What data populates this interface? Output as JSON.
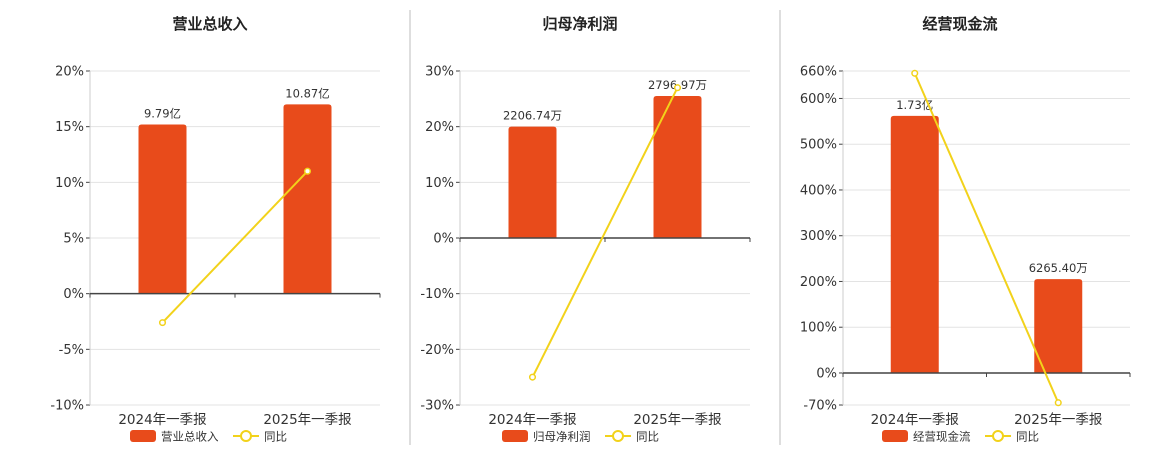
{
  "colors": {
    "bar": "#E84B1B",
    "line": "#F2D21B",
    "axis": "#444444",
    "grid": "#E3E3E3",
    "divider": "#BDBDBD"
  },
  "chart_data": [
    {
      "type": "bar",
      "title": "营业总收入",
      "categories": [
        "2024年一季报",
        "2025年一季报"
      ],
      "series": [
        {
          "name": "营业总收入",
          "type": "bar",
          "values": [
            15.2,
            17.0
          ],
          "labels": [
            "9.79亿",
            "10.87亿"
          ]
        },
        {
          "name": "同比",
          "type": "line",
          "values": [
            -2.6,
            11.0
          ]
        }
      ],
      "ylim": [
        -10,
        20
      ],
      "yticks": [
        -10,
        -5,
        0,
        5,
        10,
        15,
        20
      ],
      "ytick_labels": [
        "-10%",
        "-5%",
        "0%",
        "5%",
        "10%",
        "15%",
        "20%"
      ],
      "grid": true,
      "legend": "bottom"
    },
    {
      "type": "bar",
      "title": "归母净利润",
      "categories": [
        "2024年一季报",
        "2025年一季报"
      ],
      "series": [
        {
          "name": "归母净利润",
          "type": "bar",
          "values": [
            20.0,
            25.5
          ],
          "labels": [
            "2206.74万",
            "2796.97万"
          ]
        },
        {
          "name": "同比",
          "type": "line",
          "values": [
            -25.0,
            27.0
          ]
        }
      ],
      "ylim": [
        -30,
        30
      ],
      "yticks": [
        -30,
        -20,
        -10,
        0,
        10,
        20,
        30
      ],
      "ytick_labels": [
        "-30%",
        "-20%",
        "-10%",
        "0%",
        "10%",
        "20%",
        "30%"
      ],
      "grid": true,
      "legend": "bottom"
    },
    {
      "type": "bar",
      "title": "经营现金流",
      "categories": [
        "2024年一季报",
        "2025年一季报"
      ],
      "series": [
        {
          "name": "经营现金流",
          "type": "bar",
          "values": [
            562,
            205
          ],
          "labels": [
            "1.73亿",
            "6265.40万"
          ]
        },
        {
          "name": "同比",
          "type": "line",
          "values": [
            655,
            -65
          ]
        }
      ],
      "ylim": [
        -70,
        660
      ],
      "yticks": [
        -70,
        0,
        100,
        200,
        300,
        400,
        500,
        600,
        660
      ],
      "ytick_labels": [
        "-70%",
        "0%",
        "100%",
        "200%",
        "300%",
        "400%",
        "500%",
        "600%",
        "660%"
      ],
      "grid": true,
      "legend": "bottom"
    }
  ]
}
